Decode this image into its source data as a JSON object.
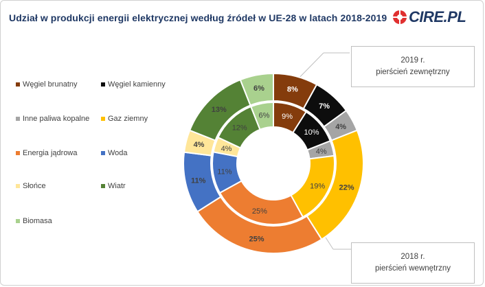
{
  "title": "Udział w produkcji energii elektrycznej według źródeł w UE-28 w latach 2018-2019",
  "logo": {
    "text": "CIRE.PL",
    "icon": "cire-logo-icon"
  },
  "callouts": {
    "outer": {
      "line1": "2019 r.",
      "line2": "pierścień zewnętrzny"
    },
    "inner": {
      "line1": "2018 r.",
      "line2": "pierścień wewnętrzny"
    }
  },
  "chart_data": {
    "type": "doughnut",
    "title": "Udział w produkcji energii elektrycznej według źródeł w UE-28 w latach 2018-2019",
    "categories": [
      "Węgiel brunatny",
      "Węgiel kamienny",
      "Inne paliwa kopalne",
      "Gaz ziemny",
      "Energia jądrowa",
      "Woda",
      "Słońce",
      "Wiatr",
      "Biomasa"
    ],
    "colors": [
      "#843c0c",
      "#0d0d0d",
      "#a5a5a5",
      "#ffc000",
      "#ed7d31",
      "#4472c4",
      "#ffe699",
      "#548235",
      "#a9d18e"
    ],
    "label_colors": [
      "#ffffff",
      "#ffffff",
      "#404040",
      "#404040",
      "#404040",
      "#404040",
      "#404040",
      "#404040",
      "#404040"
    ],
    "series": [
      {
        "name": "2019 r.",
        "ring": "outer",
        "values": [
          8,
          7,
          4,
          22,
          25,
          11,
          4,
          13,
          6
        ],
        "labels": [
          "8%",
          "7%",
          "4%",
          "22%",
          "25%",
          "11%",
          "4%",
          "13%",
          "6%"
        ]
      },
      {
        "name": "2018 r.",
        "ring": "inner",
        "values": [
          9,
          10,
          4,
          19,
          25,
          11,
          4,
          12,
          6
        ],
        "labels": [
          "9%",
          "10%",
          "4%",
          "19%",
          "25%",
          "11%",
          "4%",
          "12%",
          "6%"
        ]
      }
    ],
    "legend_position": "left"
  }
}
